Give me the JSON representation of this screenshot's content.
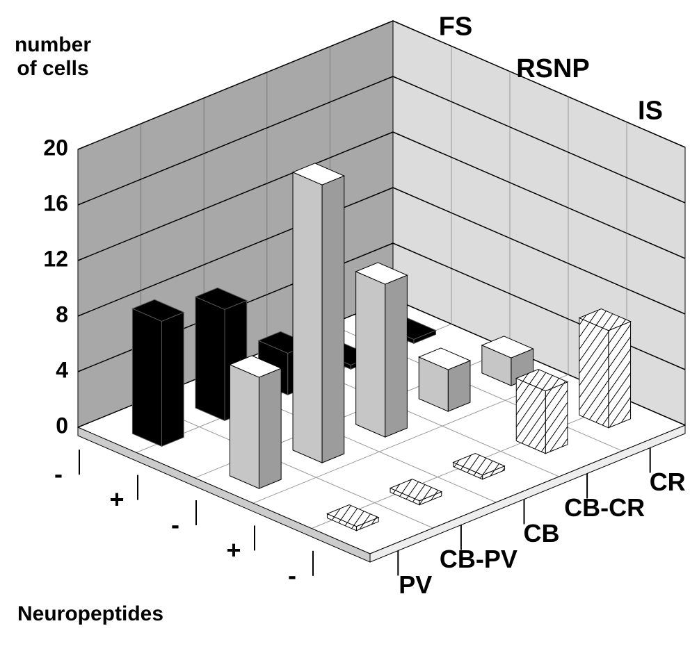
{
  "chart_data": {
    "type": "bar3d",
    "y_label": "number of cells",
    "ylim": [
      0,
      20
    ],
    "yticks": [
      0,
      4,
      8,
      12,
      16,
      20
    ],
    "grid": true,
    "categories": [
      "PV",
      "CB-PV",
      "CB",
      "CB-CR",
      "CR"
    ],
    "depth_label": "Neuropeptides",
    "depth_ticks": [
      "-",
      "+",
      "-",
      "+",
      "-"
    ],
    "series": [
      {
        "name": "FS",
        "color": "#000000",
        "values": [
          9,
          8,
          3,
          0.3,
          0.3
        ]
      },
      {
        "name": "RSNP",
        "color": "#d0d0d0",
        "values": [
          8,
          20,
          11,
          3,
          2
        ]
      },
      {
        "name": "IS",
        "color": "#ffffff",
        "hatch": true,
        "values": [
          0.3,
          0.3,
          0.3,
          4.5,
          7
        ]
      }
    ]
  }
}
